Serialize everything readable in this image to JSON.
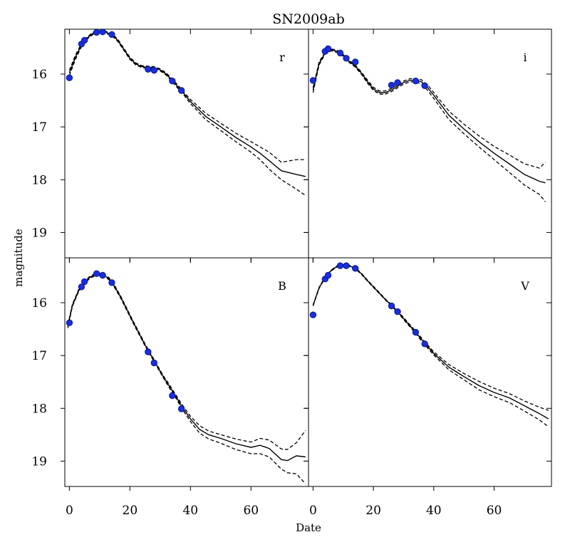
{
  "chart_data": {
    "type": "line",
    "title": "SN2009ab",
    "xlabel": "Date",
    "ylabel": "magnitude",
    "xlim": [
      -1.5,
      79
    ],
    "ylim": [
      19.48,
      15.15
    ],
    "y_inverted": true,
    "x_ticks": [
      0,
      20,
      40,
      60
    ],
    "y_ticks": [
      16,
      17,
      18,
      19
    ],
    "grid": false,
    "colors": {
      "points": "#1a2ee0",
      "point_edge": "#0a1a8a",
      "line": "#000000"
    },
    "panels": [
      {
        "band": "r",
        "points": {
          "x": [
            0,
            4,
            5,
            9,
            11,
            14,
            26,
            28,
            34,
            37
          ],
          "y": [
            16.07,
            15.43,
            15.36,
            15.21,
            15.2,
            15.25,
            15.91,
            15.93,
            16.13,
            16.31
          ]
        },
        "fit": {
          "x": [
            0,
            2,
            4,
            6,
            8,
            10,
            12,
            14,
            16,
            18,
            20,
            22,
            24,
            26,
            28,
            30,
            32,
            34,
            36,
            38,
            40,
            45,
            50,
            55,
            60,
            63,
            66,
            70,
            75,
            78
          ],
          "y": [
            15.98,
            15.68,
            15.45,
            15.31,
            15.22,
            15.2,
            15.21,
            15.25,
            15.36,
            15.53,
            15.7,
            15.81,
            15.86,
            15.87,
            15.88,
            15.92,
            16.0,
            16.12,
            16.25,
            16.38,
            16.52,
            16.8,
            17.0,
            17.2,
            17.38,
            17.5,
            17.64,
            17.83,
            17.9,
            17.94
          ]
        },
        "fit_upper": {
          "x": [
            0,
            2,
            4,
            6,
            8,
            10,
            12,
            14,
            16,
            18,
            20,
            22,
            24,
            26,
            28,
            30,
            32,
            34,
            36,
            38,
            40,
            45,
            50,
            55,
            60,
            63,
            66,
            70,
            75,
            78
          ],
          "y": [
            15.93,
            15.64,
            15.42,
            15.29,
            15.2,
            15.18,
            15.19,
            15.23,
            15.34,
            15.51,
            15.68,
            15.79,
            15.84,
            15.85,
            15.86,
            15.9,
            15.98,
            16.09,
            16.22,
            16.35,
            16.48,
            16.74,
            16.93,
            17.12,
            17.28,
            17.38,
            17.48,
            17.67,
            17.62,
            17.62
          ]
        },
        "fit_lower": {
          "x": [
            0,
            2,
            4,
            6,
            8,
            10,
            12,
            14,
            16,
            18,
            20,
            22,
            24,
            26,
            28,
            30,
            32,
            34,
            36,
            38,
            40,
            45,
            50,
            55,
            60,
            63,
            66,
            70,
            75,
            78
          ],
          "y": [
            16.03,
            15.72,
            15.48,
            15.33,
            15.24,
            15.22,
            15.23,
            15.27,
            15.38,
            15.55,
            15.72,
            15.83,
            15.88,
            15.89,
            15.9,
            15.94,
            16.02,
            16.15,
            16.28,
            16.41,
            16.56,
            16.86,
            17.07,
            17.28,
            17.48,
            17.62,
            17.8,
            18.0,
            18.18,
            18.3
          ]
        }
      },
      {
        "band": "i",
        "points": {
          "x": [
            0,
            4,
            5,
            9,
            11,
            14,
            26,
            28,
            34,
            37
          ],
          "y": [
            16.12,
            15.57,
            15.52,
            15.6,
            15.7,
            15.77,
            16.21,
            16.16,
            16.13,
            16.22
          ]
        },
        "fit": {
          "x": [
            0,
            2,
            4,
            6,
            8,
            10,
            12,
            14,
            16,
            18,
            20,
            22,
            24,
            26,
            28,
            30,
            32,
            34,
            36,
            38,
            40,
            45,
            50,
            55,
            60,
            65,
            70,
            75,
            77
          ],
          "y": [
            16.3,
            15.8,
            15.6,
            15.54,
            15.57,
            15.65,
            15.76,
            15.85,
            15.98,
            16.14,
            16.28,
            16.35,
            16.35,
            16.3,
            16.23,
            16.16,
            16.12,
            16.11,
            16.15,
            16.26,
            16.4,
            16.78,
            17.04,
            17.28,
            17.5,
            17.7,
            17.9,
            18.03,
            18.06
          ]
        },
        "fit_upper": {
          "x": [
            0,
            2,
            4,
            6,
            8,
            10,
            12,
            14,
            16,
            18,
            20,
            22,
            24,
            26,
            28,
            30,
            32,
            34,
            36,
            38,
            40,
            45,
            50,
            55,
            60,
            65,
            70,
            75,
            77
          ],
          "y": [
            16.26,
            15.77,
            15.58,
            15.52,
            15.55,
            15.63,
            15.74,
            15.83,
            15.96,
            16.11,
            16.25,
            16.32,
            16.32,
            16.27,
            16.2,
            16.13,
            16.09,
            16.08,
            16.11,
            16.21,
            16.35,
            16.7,
            16.95,
            17.17,
            17.37,
            17.53,
            17.7,
            17.78,
            17.67
          ]
        },
        "fit_lower": {
          "x": [
            0,
            2,
            4,
            6,
            8,
            10,
            12,
            14,
            16,
            18,
            20,
            22,
            24,
            26,
            28,
            30,
            32,
            34,
            36,
            38,
            40,
            45,
            50,
            55,
            60,
            65,
            70,
            75,
            77
          ],
          "y": [
            16.35,
            15.83,
            15.62,
            15.56,
            15.59,
            15.67,
            15.78,
            15.87,
            16.0,
            16.17,
            16.31,
            16.38,
            16.38,
            16.33,
            16.26,
            16.19,
            16.15,
            16.14,
            16.19,
            16.31,
            16.46,
            16.86,
            17.13,
            17.38,
            17.62,
            17.86,
            18.1,
            18.28,
            18.42
          ]
        }
      },
      {
        "band": "B",
        "points": {
          "x": [
            0,
            4,
            5,
            9,
            11,
            14,
            26,
            28,
            34,
            37
          ],
          "y": [
            16.38,
            15.7,
            15.6,
            15.45,
            15.48,
            15.62,
            16.93,
            17.14,
            17.76,
            18.01
          ]
        },
        "fit": {
          "x": [
            -0.5,
            1,
            3,
            5,
            7,
            9,
            11,
            13,
            15,
            17,
            19,
            21,
            23,
            25,
            27,
            29,
            31,
            33,
            35,
            37,
            40,
            43,
            46,
            50,
            55,
            60,
            63,
            66,
            70,
            72,
            75,
            78
          ],
          "y": [
            16.45,
            16.05,
            15.78,
            15.61,
            15.51,
            15.46,
            15.47,
            15.54,
            15.7,
            15.9,
            16.13,
            16.36,
            16.58,
            16.8,
            17.0,
            17.2,
            17.4,
            17.58,
            17.76,
            17.95,
            18.2,
            18.4,
            18.5,
            18.57,
            18.67,
            18.74,
            18.7,
            18.76,
            18.97,
            18.99,
            18.9,
            18.92
          ]
        },
        "fit_upper": {
          "x": [
            -0.5,
            1,
            3,
            5,
            7,
            9,
            11,
            13,
            15,
            17,
            19,
            21,
            23,
            25,
            27,
            29,
            31,
            33,
            35,
            37,
            40,
            43,
            46,
            50,
            55,
            60,
            63,
            66,
            70,
            72,
            75,
            78
          ],
          "y": [
            16.42,
            16.03,
            15.76,
            15.59,
            15.49,
            15.44,
            15.45,
            15.52,
            15.68,
            15.88,
            16.11,
            16.34,
            16.56,
            16.78,
            16.98,
            17.18,
            17.38,
            17.55,
            17.73,
            17.91,
            18.15,
            18.33,
            18.43,
            18.5,
            18.58,
            18.64,
            18.57,
            18.6,
            18.77,
            18.78,
            18.65,
            18.42
          ]
        },
        "fit_lower": {
          "x": [
            -0.5,
            1,
            3,
            5,
            7,
            9,
            11,
            13,
            15,
            17,
            19,
            21,
            23,
            25,
            27,
            29,
            31,
            33,
            35,
            37,
            40,
            43,
            46,
            50,
            55,
            60,
            63,
            66,
            70,
            72,
            75,
            78
          ],
          "y": [
            16.48,
            16.07,
            15.8,
            15.63,
            15.53,
            15.48,
            15.49,
            15.56,
            15.72,
            15.92,
            16.15,
            16.38,
            16.6,
            16.82,
            17.02,
            17.22,
            17.42,
            17.61,
            17.79,
            17.99,
            18.25,
            18.47,
            18.58,
            18.66,
            18.78,
            18.86,
            18.86,
            18.92,
            19.15,
            19.22,
            19.24,
            19.43
          ]
        }
      },
      {
        "band": "V",
        "points": {
          "x": [
            0,
            4,
            5,
            9,
            11,
            14,
            26,
            28,
            34,
            37
          ],
          "y": [
            16.23,
            15.55,
            15.48,
            15.3,
            15.3,
            15.35,
            16.06,
            16.17,
            16.56,
            16.78
          ]
        },
        "fit": {
          "x": [
            0,
            2,
            4,
            6,
            8,
            10,
            12,
            14,
            16,
            18,
            20,
            22,
            24,
            26,
            28,
            30,
            32,
            34,
            36,
            38,
            40,
            45,
            50,
            55,
            60,
            65,
            70,
            75,
            78
          ],
          "y": [
            16.05,
            15.72,
            15.52,
            15.39,
            15.31,
            15.29,
            15.3,
            15.35,
            15.45,
            15.58,
            15.7,
            15.82,
            15.94,
            16.05,
            16.17,
            16.3,
            16.43,
            16.56,
            16.7,
            16.83,
            16.96,
            17.22,
            17.4,
            17.57,
            17.7,
            17.8,
            17.95,
            18.1,
            18.2
          ]
        },
        "fit_upper": {
          "x": [
            0,
            2,
            4,
            6,
            8,
            10,
            12,
            14,
            16,
            18,
            20,
            22,
            24,
            26,
            28,
            30,
            32,
            34,
            36,
            38,
            40,
            45,
            50,
            55,
            60,
            65,
            70,
            75,
            78
          ],
          "y": [
            16.04,
            15.71,
            15.51,
            15.38,
            15.3,
            15.28,
            15.29,
            15.34,
            15.44,
            15.57,
            15.69,
            15.81,
            15.93,
            16.04,
            16.16,
            16.28,
            16.41,
            16.54,
            16.67,
            16.8,
            16.93,
            17.17,
            17.34,
            17.49,
            17.62,
            17.72,
            17.86,
            17.98,
            18.04
          ]
        },
        "fit_lower": {
          "x": [
            0,
            2,
            4,
            6,
            8,
            10,
            12,
            14,
            16,
            18,
            20,
            22,
            24,
            26,
            28,
            30,
            32,
            34,
            36,
            38,
            40,
            45,
            50,
            55,
            60,
            65,
            70,
            75,
            78
          ],
          "y": [
            16.06,
            15.73,
            15.53,
            15.4,
            15.32,
            15.3,
            15.31,
            15.36,
            15.46,
            15.59,
            15.71,
            15.83,
            15.95,
            16.06,
            16.18,
            16.32,
            16.45,
            16.58,
            16.73,
            16.86,
            16.99,
            17.27,
            17.46,
            17.65,
            17.78,
            17.89,
            18.05,
            18.22,
            18.35
          ]
        }
      }
    ]
  }
}
